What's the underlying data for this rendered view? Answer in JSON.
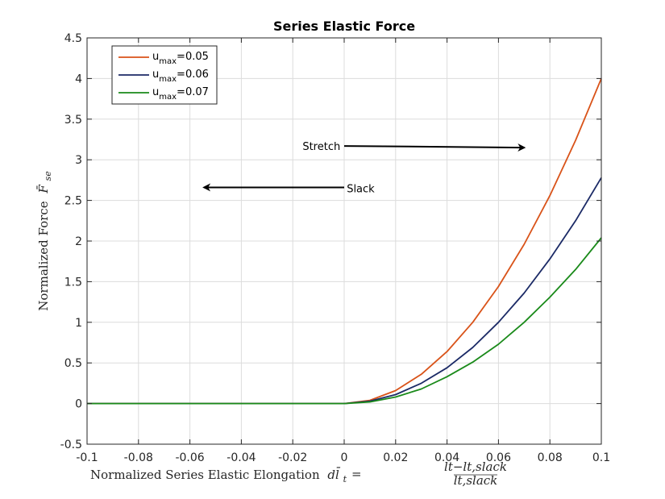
{
  "chart_data": {
    "type": "line",
    "title": "Series Elastic Force",
    "xlabel": "Normalized Series Elastic Elongation",
    "xlabel_symbol": "dl̄",
    "xlabel_subscript": "t",
    "xlabel_frac_num": "lt−lt,slack",
    "xlabel_frac_den": "lt,slack",
    "ylabel": "Normalized Force",
    "ylabel_symbol": "F̄",
    "ylabel_subscript": "se",
    "xlim": [
      -0.1,
      0.1
    ],
    "ylim": [
      -0.5,
      4.5
    ],
    "xticks": [
      -0.1,
      -0.08,
      -0.06,
      -0.04,
      -0.02,
      0,
      0.02,
      0.04,
      0.06,
      0.08,
      0.1
    ],
    "xtick_labels": [
      "-0.1",
      "-0.08",
      "-0.06",
      "-0.04",
      "-0.02",
      "0",
      "0.02",
      "0.04",
      "0.06",
      "0.08",
      "0.1"
    ],
    "yticks": [
      -0.5,
      0,
      0.5,
      1,
      1.5,
      2,
      2.5,
      3,
      3.5,
      4,
      4.5
    ],
    "ytick_labels": [
      "-0.5",
      "0",
      "0.5",
      "1",
      "1.5",
      "2",
      "2.5",
      "3",
      "3.5",
      "4",
      "4.5"
    ],
    "grid": true,
    "legend_position": "top-left",
    "x": [
      -0.1,
      -0.08,
      -0.06,
      -0.04,
      -0.02,
      0,
      0.01,
      0.02,
      0.03,
      0.04,
      0.05,
      0.06,
      0.07,
      0.08,
      0.09,
      0.1
    ],
    "series": [
      {
        "name_main": "u",
        "name_sub": "max",
        "name_value": "=0.05",
        "color": "#d95319",
        "values": [
          0,
          0,
          0,
          0,
          0,
          0,
          0.04,
          0.16,
          0.36,
          0.64,
          1.0,
          1.44,
          1.96,
          2.56,
          3.24,
          4.0
        ]
      },
      {
        "name_main": "u",
        "name_sub": "max",
        "name_value": "=0.06",
        "color": "#1b2a66",
        "values": [
          0,
          0,
          0,
          0,
          0,
          0,
          0.03,
          0.11,
          0.25,
          0.44,
          0.69,
          1.0,
          1.36,
          1.78,
          2.25,
          2.78
        ]
      },
      {
        "name_main": "u",
        "name_sub": "max",
        "name_value": "=0.07",
        "color": "#1a8a1a",
        "values": [
          0,
          0,
          0,
          0,
          0,
          0,
          0.02,
          0.08,
          0.18,
          0.33,
          0.51,
          0.73,
          1.0,
          1.31,
          1.65,
          2.04
        ]
      }
    ],
    "annotations": [
      {
        "text": "Stretch",
        "text_x": -0.0015,
        "text_y": 3.17,
        "arrow_from": [
          0,
          3.17
        ],
        "arrow_to": [
          0.07,
          3.15
        ]
      },
      {
        "text": "Slack",
        "text_x": 0.001,
        "text_y": 2.65,
        "arrow_from": [
          0,
          2.66
        ],
        "arrow_to": [
          -0.0545,
          2.66
        ]
      }
    ]
  }
}
